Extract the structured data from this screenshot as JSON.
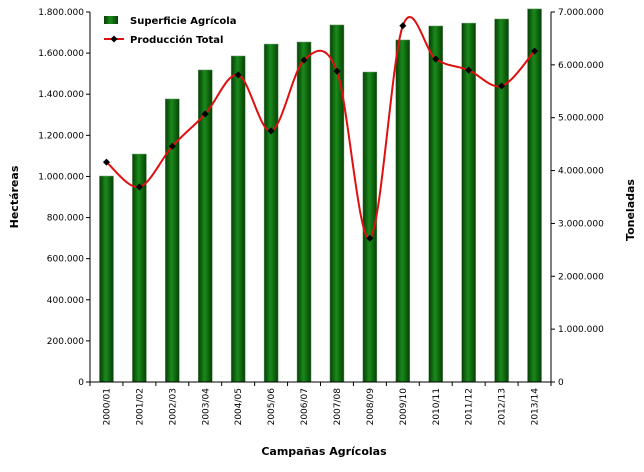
{
  "chart_data": {
    "type": "bar+line",
    "xlabel": "Campañas Agrícolas",
    "ylabel": "Hectáreas",
    "y2label": "Toneladas",
    "categories": [
      "2000/01",
      "2001/02",
      "2002/03",
      "2003/04",
      "2004/05",
      "2005/06",
      "2006/07",
      "2007/08",
      "2008/09",
      "2009/10",
      "2010/11",
      "2011/12",
      "2012/13",
      "2013/14"
    ],
    "ylim": [
      0,
      1800000
    ],
    "y2lim": [
      0,
      7000000
    ],
    "yticks": [
      "0",
      "200.000",
      "400.000",
      "600.000",
      "800.000",
      "1.000.000",
      "1.200.000",
      "1.400.000",
      "1.600.000",
      "1.800.000"
    ],
    "y2ticks": [
      "0",
      "1.000.000",
      "2.000.000",
      "3.000.000",
      "4.000.000",
      "5.000.000",
      "6.000.000",
      "7.000.000"
    ],
    "legend_position": "top-left",
    "series": [
      {
        "name": "Superficie Agrícola",
        "type": "bar",
        "axis": "left",
        "color": "#0b6b0b",
        "values": [
          1002000,
          1109000,
          1377000,
          1518000,
          1586000,
          1644000,
          1654000,
          1737000,
          1508000,
          1664000,
          1732000,
          1746000,
          1766000,
          1815000
        ]
      },
      {
        "name": "Producción Total",
        "type": "line",
        "axis": "right",
        "color": "#e01010",
        "values": [
          4160000,
          3690000,
          4460000,
          5070000,
          5810000,
          4750000,
          6090000,
          5880000,
          2720000,
          6740000,
          6110000,
          5900000,
          5600000,
          6260000
        ]
      }
    ]
  }
}
